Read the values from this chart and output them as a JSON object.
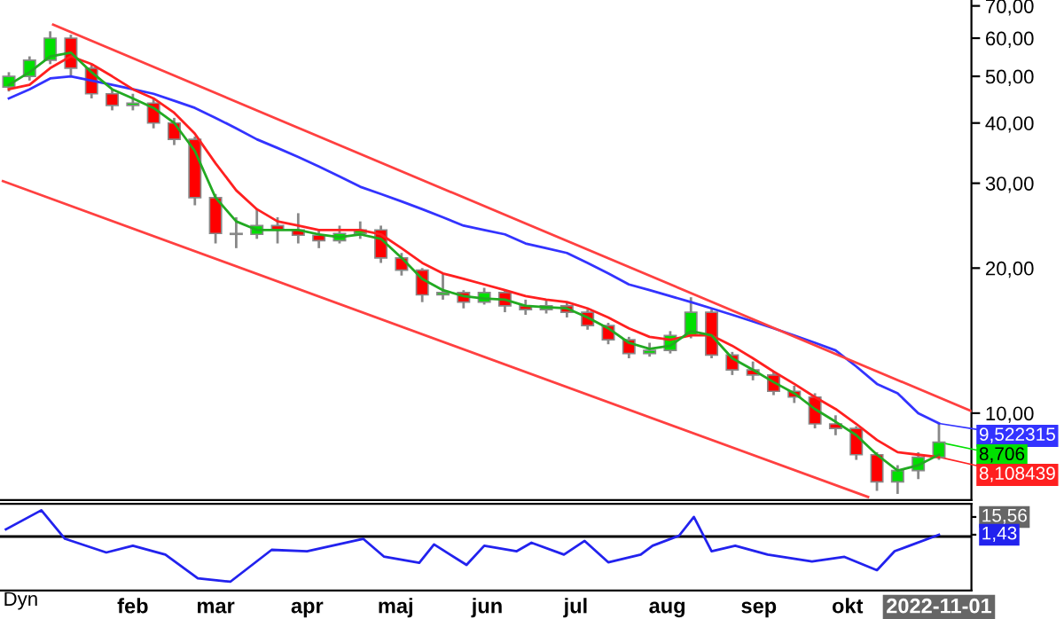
{
  "chart_data": [
    {
      "type": "candlestick",
      "log": true,
      "grid": false,
      "tick_labels": "y",
      "xlim": [
        "2021-12-18",
        "2022-11-12"
      ],
      "ylim": [
        6.6,
        72
      ],
      "yticks": [
        {
          "value": 10,
          "label": "10,00"
        },
        {
          "value": 20,
          "label": "20,00"
        },
        {
          "value": 30,
          "label": "30,00"
        },
        {
          "value": 40,
          "label": "40,00"
        },
        {
          "value": 50,
          "label": "50,00"
        },
        {
          "value": 60,
          "label": "60,00"
        },
        {
          "value": 70,
          "label": "70,00"
        }
      ],
      "x": [
        "2021-12-21",
        "2021-12-28",
        "2022-01-04",
        "2022-01-11",
        "2022-01-18",
        "2022-01-25",
        "2022-02-01",
        "2022-02-08",
        "2022-02-15",
        "2022-02-22",
        "2022-03-01",
        "2022-03-08",
        "2022-03-15",
        "2022-03-22",
        "2022-03-29",
        "2022-04-05",
        "2022-04-12",
        "2022-04-19",
        "2022-04-26",
        "2022-05-03",
        "2022-05-10",
        "2022-05-17",
        "2022-05-24",
        "2022-05-31",
        "2022-06-07",
        "2022-06-14",
        "2022-06-21",
        "2022-06-28",
        "2022-07-05",
        "2022-07-12",
        "2022-07-19",
        "2022-07-26",
        "2022-08-02",
        "2022-08-09",
        "2022-08-16",
        "2022-08-23",
        "2022-08-30",
        "2022-09-06",
        "2022-09-13",
        "2022-09-20",
        "2022-09-27",
        "2022-10-04",
        "2022-10-11",
        "2022-10-18",
        "2022-10-25",
        "2022-11-01"
      ],
      "ohlc": [
        [
          47.5,
          51,
          46.5,
          50
        ],
        [
          50,
          55,
          49,
          54
        ],
        [
          54,
          62,
          53,
          60
        ],
        [
          60,
          61,
          50,
          52
        ],
        [
          52,
          53,
          45,
          46
        ],
        [
          46,
          47,
          42.5,
          43.5
        ],
        [
          43.5,
          46,
          42.5,
          44
        ],
        [
          44,
          45,
          39,
          40
        ],
        [
          40,
          41,
          36,
          37
        ],
        [
          37,
          37.5,
          27,
          28
        ],
        [
          28,
          28.5,
          22.5,
          23.6
        ],
        [
          23.6,
          25.5,
          22,
          23.5
        ],
        [
          23.5,
          26.5,
          23,
          24.5
        ],
        [
          24.5,
          25.5,
          22.5,
          24
        ],
        [
          24,
          26,
          22.5,
          23.4
        ],
        [
          23.4,
          24,
          22,
          22.8
        ],
        [
          22.8,
          24.5,
          22.5,
          23.6
        ],
        [
          23.6,
          25,
          23,
          24
        ],
        [
          24,
          24.5,
          20.5,
          21
        ],
        [
          21,
          21.5,
          19.3,
          19.8
        ],
        [
          19.8,
          20,
          17,
          17.6
        ],
        [
          17.6,
          19.5,
          17.2,
          17.8
        ],
        [
          17.8,
          18,
          16.5,
          17
        ],
        [
          17,
          18.2,
          16.8,
          17.8
        ],
        [
          17.8,
          18,
          16.2,
          16.7
        ],
        [
          16.7,
          17.2,
          16,
          16.4
        ],
        [
          16.4,
          17.2,
          16.1,
          16.7
        ],
        [
          16.7,
          17,
          15.8,
          16.2
        ],
        [
          16.2,
          16.4,
          14.9,
          15.2
        ],
        [
          15.2,
          15.4,
          13.9,
          14.2
        ],
        [
          14.2,
          14.4,
          13,
          13.3
        ],
        [
          13.3,
          14,
          13.1,
          13.5
        ],
        [
          13.5,
          14.8,
          13.3,
          14.5
        ],
        [
          14.5,
          17.4,
          14.3,
          16.2
        ],
        [
          16.2,
          16.4,
          13,
          13.2
        ],
        [
          13.2,
          13.4,
          12,
          12.3
        ],
        [
          12.3,
          12.8,
          11.7,
          12
        ],
        [
          12,
          12.2,
          10.9,
          11.1
        ],
        [
          11.1,
          11.4,
          10.5,
          10.8
        ],
        [
          10.8,
          11,
          9.3,
          9.5
        ],
        [
          9.5,
          9.9,
          9,
          9.3
        ],
        [
          9.3,
          9.4,
          8,
          8.2
        ],
        [
          8.2,
          8.3,
          6.9,
          7.2
        ],
        [
          7.2,
          7.8,
          6.8,
          7.6
        ],
        [
          7.6,
          8.3,
          7.3,
          8.1
        ],
        [
          8.1,
          9.5,
          8,
          8.706
        ]
      ],
      "colors": [
        "#00e000",
        "#00e000",
        "#00e000",
        "#ff0000",
        "#ff0000",
        "#ff0000",
        "#00e000",
        "#ff0000",
        "#ff0000",
        "#ff0000",
        "#ff0000",
        "#ff0000",
        "#00e000",
        "#ff0000",
        "#ff0000",
        "#ff0000",
        "#00e000",
        "#00e000",
        "#ff0000",
        "#ff0000",
        "#ff0000",
        "#00e000",
        "#ff0000",
        "#00e000",
        "#ff0000",
        "#ff0000",
        "#00e000",
        "#ff0000",
        "#ff0000",
        "#ff0000",
        "#ff0000",
        "#00e000",
        "#00e000",
        "#00e000",
        "#ff0000",
        "#ff0000",
        "#ff0000",
        "#ff0000",
        "#ff0000",
        "#ff0000",
        "#ff0000",
        "#ff0000",
        "#ff0000",
        "#00e000",
        "#00e000",
        "#00e000"
      ],
      "series": [
        {
          "type": "line",
          "color": "#3333ff",
          "values": [
            45,
            47,
            49.5,
            50,
            49,
            48,
            47,
            46,
            44.5,
            43,
            41,
            39,
            37,
            35.5,
            34,
            32.5,
            31,
            29.5,
            28.5,
            27.5,
            26.5,
            25.5,
            24.5,
            24,
            23.5,
            22.5,
            22,
            21.5,
            20.5,
            19.5,
            18.5,
            18,
            17.5,
            17,
            16.5,
            16,
            15.5,
            15,
            14.5,
            14,
            13.5,
            12.5,
            11.5,
            11,
            10,
            9.522315
          ]
        },
        {
          "type": "line",
          "color": "#ff2020",
          "values": [
            47,
            48,
            52,
            55,
            53,
            50,
            47,
            45,
            42,
            38,
            33,
            29,
            26.5,
            25,
            24.5,
            24,
            24,
            24,
            23.5,
            22,
            20.5,
            19.5,
            19,
            18.5,
            18,
            17.5,
            17.2,
            17,
            16.5,
            15.8,
            15,
            14.4,
            14.2,
            14.5,
            14.5,
            13.8,
            13,
            12.2,
            11.5,
            10.8,
            10.2,
            9.5,
            8.8,
            8.3,
            8.2,
            8.108439
          ]
        },
        {
          "type": "line",
          "color": "#22aa22",
          "values": [
            48,
            51,
            55,
            56,
            51,
            47,
            45,
            43,
            40,
            35,
            28,
            25,
            24,
            24,
            24,
            23.5,
            23.2,
            23.5,
            23,
            21,
            19,
            18,
            17.5,
            17.3,
            17.2,
            16.7,
            16.6,
            16.5,
            15.8,
            15,
            14,
            13.6,
            13.8,
            14.8,
            14.5,
            13,
            12.3,
            11.6,
            11,
            10.2,
            9.6,
            9,
            8.2,
            7.6,
            7.8,
            8.2
          ]
        },
        {
          "type": "line",
          "color": "#ff4040",
          "x": [
            "2022-01-05",
            "2022-11-12"
          ],
          "values": [
            64,
            10.1
          ]
        },
        {
          "type": "line",
          "color": "#ff4040",
          "x": [
            "2021-12-19",
            "2022-10-08"
          ],
          "values": [
            30.3,
            6.7
          ]
        }
      ],
      "annotations": [
        {
          "text": "9,522315",
          "x": "2022-11-01",
          "y": 9.522315
        },
        {
          "text": "8,706",
          "x": "2022-11-01",
          "y": 8.706
        },
        {
          "text": "8,108439",
          "x": "2022-11-01",
          "y": 8.108439
        }
      ]
    },
    {
      "type": "line",
      "grid": false,
      "xlim": [
        "2021-12-18",
        "2022-11-12"
      ],
      "ylim": [
        -43,
        26
      ],
      "yticks": [
        {
          "value": 15.56,
          "label": "15,56"
        },
        {
          "value": 1.43,
          "label": "1,43"
        }
      ],
      "xticks": [
        {
          "value": "2022-02-01",
          "label": "feb"
        },
        {
          "value": "2022-03-01",
          "label": "mar"
        },
        {
          "value": "2022-04-01",
          "label": "apr"
        },
        {
          "value": "2022-05-01",
          "label": "maj"
        },
        {
          "value": "2022-06-01",
          "label": "jun"
        },
        {
          "value": "2022-07-01",
          "label": "jul"
        },
        {
          "value": "2022-08-01",
          "label": "aug"
        },
        {
          "value": "2022-09-01",
          "label": "sep"
        },
        {
          "value": "2022-10-01",
          "label": "okt"
        },
        {
          "value": "2022-11-01",
          "label": "2022-11-01"
        }
      ],
      "series": [
        {
          "color": "#2222ee",
          "x": [
            "2021-12-20",
            "2022-01-01",
            "2022-01-09",
            "2022-01-23",
            "2022-02-01",
            "2022-02-12",
            "2022-02-23",
            "2022-03-06",
            "2022-03-20",
            "2022-04-01",
            "2022-04-20",
            "2022-04-27",
            "2022-05-09",
            "2022-05-14",
            "2022-05-25",
            "2022-05-31",
            "2022-06-11",
            "2022-06-16",
            "2022-06-27",
            "2022-07-04",
            "2022-07-12",
            "2022-07-23",
            "2022-07-27",
            "2022-08-05",
            "2022-08-10",
            "2022-08-16",
            "2022-08-24",
            "2022-09-04",
            "2022-09-19",
            "2022-09-30",
            "2022-10-11",
            "2022-10-17",
            "2022-10-22",
            "2022-11-01"
          ],
          "values": [
            5.7,
            20.9,
            -1.8,
            -12.7,
            -7.3,
            -14.4,
            -33.2,
            -36,
            -10.6,
            -11.7,
            -1.8,
            -15.9,
            -20.9,
            -6.3,
            -22.6,
            -7.3,
            -11.7,
            -4.9,
            -14.4,
            -3.5,
            -20.5,
            -14.4,
            -7.3,
            0.7,
            15.56,
            -11.7,
            -7.3,
            -14.4,
            -19.8,
            -16.2,
            -26.8,
            -11.7,
            -7.3,
            1.43
          ]
        }
      ],
      "ref_lines": [
        {
          "axis": "y",
          "value": 0,
          "color": "#000000"
        }
      ],
      "annotations": [
        "Dyn"
      ]
    }
  ]
}
